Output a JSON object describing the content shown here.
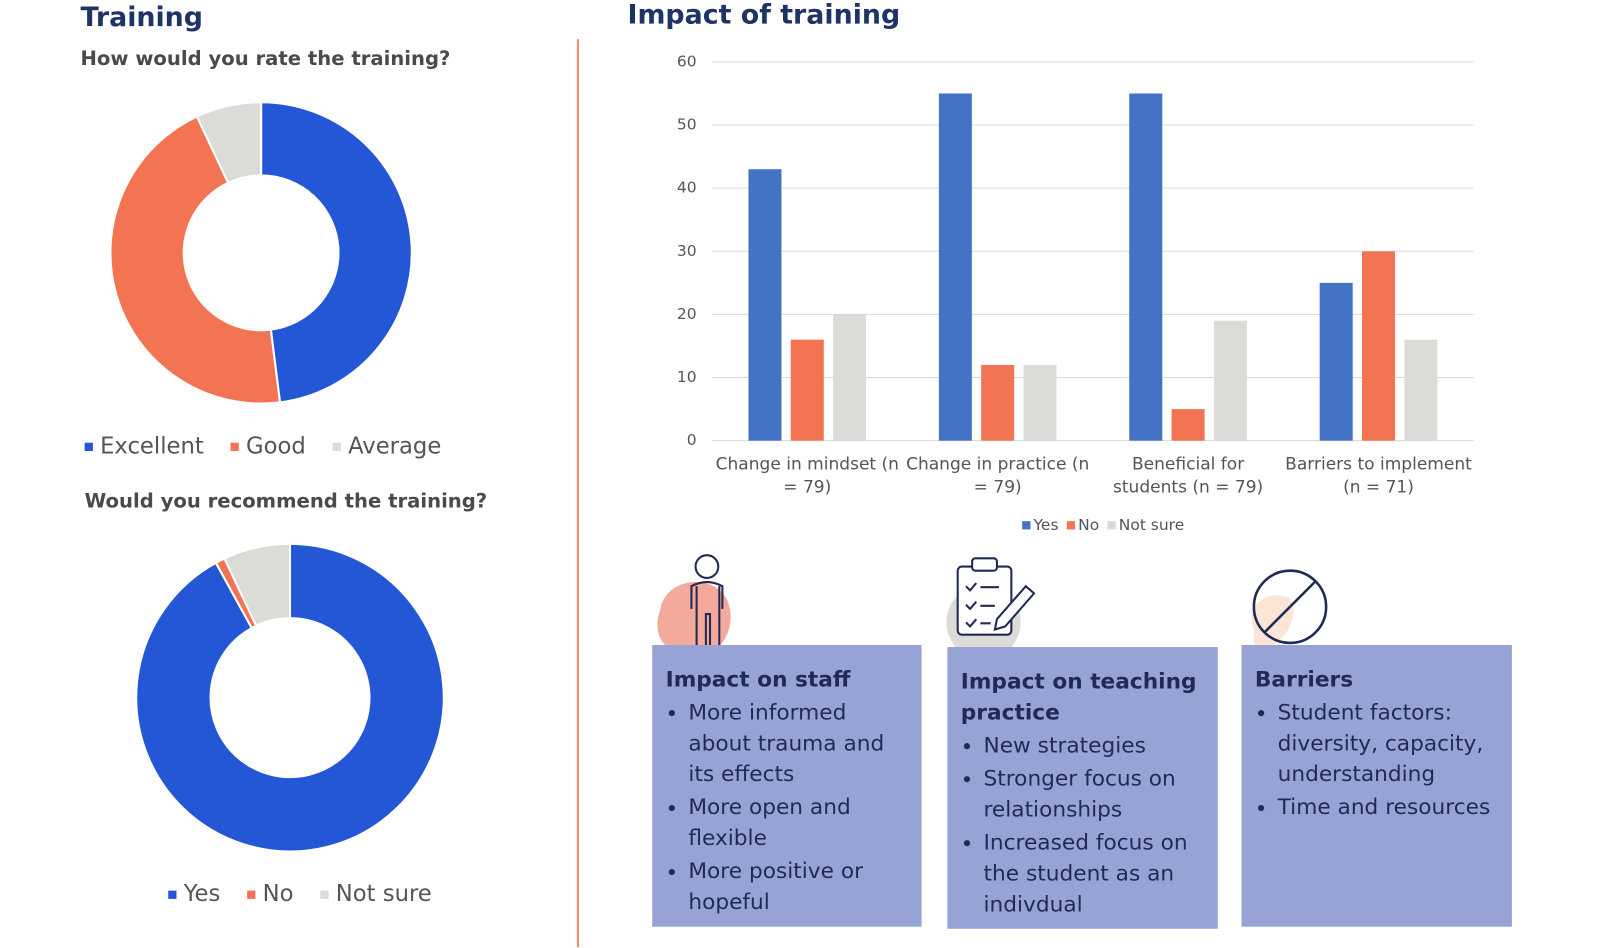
{
  "headings": [
    "Training",
    "Impact of training"
  ],
  "chart_data": [
    {
      "type": "pie",
      "donut": true,
      "title": "How would you rate the training?",
      "categories": [
        "Excellent",
        "Good",
        "Average"
      ],
      "values": [
        48,
        45,
        7
      ],
      "colors": [
        "#2457d6",
        "#f37452",
        "#dcdbd8"
      ]
    },
    {
      "type": "pie",
      "donut": true,
      "title": "Would you recommend the training?",
      "categories": [
        "Yes",
        "No",
        "Not sure"
      ],
      "values": [
        92,
        1,
        7
      ],
      "colors": [
        "#2457d6",
        "#f37452",
        "#dcdbd8"
      ]
    },
    {
      "type": "bar",
      "categories": [
        "Change in mindset (n = 79)",
        "Change in practice (n = 79)",
        "Beneficial for students (n = 79)",
        "Barriers to implement (n = 71)"
      ],
      "series": [
        {
          "name": "Yes",
          "color": "#4472c4",
          "values": [
            43,
            55,
            55,
            25
          ]
        },
        {
          "name": "No",
          "color": "#f37452",
          "values": [
            16,
            12,
            5,
            30
          ]
        },
        {
          "name": "Not sure",
          "color": "#dcdbd8",
          "values": [
            20,
            12,
            19,
            16
          ]
        }
      ],
      "ylim": [
        0,
        60
      ],
      "yticks": [
        0,
        10,
        20,
        30,
        40,
        50,
        60
      ],
      "grid": true,
      "legend": "bottom"
    }
  ],
  "cards": [
    {
      "title": "Impact on staff",
      "items": [
        "More informed about trauma and its effects",
        "More open and flexible",
        "More positive or hopeful"
      ]
    },
    {
      "title": "Impact on teaching practice",
      "items": [
        "New strategies",
        "Stronger focus on relationships",
        "Increased focus on the student as an indivdual"
      ]
    },
    {
      "title": "Barriers",
      "items": [
        "Student factors: diversity, capacity, understanding",
        "Time and resources"
      ]
    }
  ]
}
